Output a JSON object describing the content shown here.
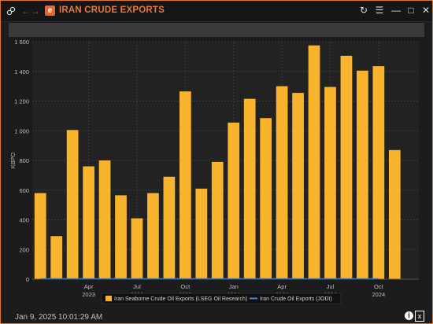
{
  "window": {
    "title": "IRAN CRUDE EXPORTS",
    "timestamp": "Jan 9, 2025 10:01:29 AM"
  },
  "icons": {
    "link": "link-icon",
    "back": "arrow-left-icon",
    "forward": "arrow-right-icon",
    "app": "app-logo-icon",
    "refresh": "refresh-icon",
    "menu": "hamburger-menu-icon",
    "minimize": "minimize-icon",
    "maximize": "maximize-icon",
    "close": "close-icon",
    "info": "info-icon",
    "excel": "excel-export-icon"
  },
  "colors": {
    "accent": "#e8793a",
    "bar": "#f9b42d",
    "line": "#3a8ee6"
  },
  "chart_data": {
    "type": "bar",
    "title": "",
    "ylabel": "KBPD",
    "ylim": [
      0,
      1600
    ],
    "yticks": [
      0,
      200,
      400,
      600,
      800,
      1000,
      1200,
      1400,
      1600
    ],
    "ytick_labels": [
      "0",
      "200",
      "400",
      "600",
      "800",
      "1 000",
      "1 200",
      "1 400",
      "1 600"
    ],
    "x": [
      "2023-01",
      "2023-02",
      "2023-03",
      "2023-04",
      "2023-05",
      "2023-06",
      "2023-07",
      "2023-08",
      "2023-09",
      "2023-10",
      "2023-11",
      "2023-12",
      "2024-01",
      "2024-02",
      "2024-03",
      "2024-04",
      "2024-05",
      "2024-06",
      "2024-07",
      "2024-08",
      "2024-09",
      "2024-10",
      "2024-11",
      "2024-12"
    ],
    "xtick_labels": [
      {
        "at": "2023-04",
        "month": "Apr",
        "year": "2023"
      },
      {
        "at": "2023-07",
        "month": "Jul",
        "year": "2023"
      },
      {
        "at": "2023-10",
        "month": "Oct",
        "year": "2023"
      },
      {
        "at": "2024-01",
        "month": "Jan",
        "year": "2024"
      },
      {
        "at": "2024-04",
        "month": "Apr",
        "year": "2024"
      },
      {
        "at": "2024-07",
        "month": "Jul",
        "year": "2024"
      },
      {
        "at": "2024-10",
        "month": "Oct",
        "year": "2024"
      }
    ],
    "grid": true,
    "legend_position": "bottom-center",
    "series": [
      {
        "name": "Iran Seaborne Crude Oil Exports (LSEG Oil Research)",
        "type": "bar",
        "values": [
          580,
          290,
          1005,
          760,
          800,
          565,
          410,
          580,
          690,
          1265,
          610,
          790,
          1055,
          1215,
          1085,
          1300,
          1255,
          1575,
          1295,
          1505,
          1405,
          1435,
          870,
          null
        ]
      },
      {
        "name": "Iran Crude Oil Exports (JODI)",
        "type": "line",
        "values": [
          0,
          0,
          0,
          0,
          0,
          0,
          0,
          0,
          0,
          0,
          0,
          0,
          0,
          0,
          0,
          0,
          0,
          0,
          0,
          0,
          0,
          0,
          null,
          null
        ]
      }
    ]
  }
}
